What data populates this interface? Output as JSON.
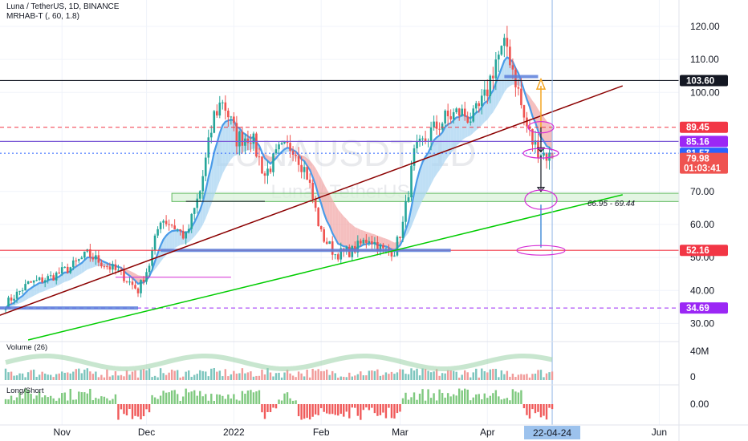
{
  "header": {
    "symbol_line": "Luna / TetherUS, 1D, BINANCE",
    "indicator_line": "MRHAB-T (, 60, 1.8)"
  },
  "watermark": {
    "line1": "LUNAUSDT, 1D",
    "line2": "Luna / TetherUS"
  },
  "panes": {
    "volume_label": "Volume (26)",
    "longshort_label": "Long/Short"
  },
  "zone_label": "66.95 - 69.44",
  "colors": {
    "up": "#26a69a",
    "down": "#ef5350",
    "resistance": "#131722",
    "rising_trend": "#8b0000",
    "support_trend": "#00cc00",
    "level_line": "#5b7fdb",
    "zone_fill": "#d9f2d9",
    "projection": "#f4a522",
    "marker": "#d42ad4"
  },
  "chart_data": {
    "type": "candlestick",
    "title": "Luna / TetherUS, 1D, BINANCE",
    "y_axis": {
      "position": "right",
      "range": [
        25,
        128
      ],
      "ticks": [
        120,
        110,
        100,
        70,
        60,
        50,
        40,
        30
      ],
      "tick_labels": [
        "120.00",
        "110.00",
        "100.00",
        "70.00",
        "60.00",
        "50.00",
        "40.00",
        "30.00"
      ]
    },
    "x_axis": {
      "labels": [
        "Nov",
        "Dec",
        "2022",
        "Feb",
        "Mar",
        "Apr",
        "Jun"
      ],
      "label_dates": [
        "2021-11-01",
        "2021-12-01",
        "2022-01-01",
        "2022-02-01",
        "2022-03-01",
        "2022-04-01",
        "2022-06-01"
      ],
      "range": [
        "2021-10-10",
        "2022-06-08"
      ],
      "cursor_label": "22-04-24",
      "cursor_date": "2022-04-24"
    },
    "price_tags": [
      {
        "label": "103.60",
        "value": 103.6,
        "color": "#131722"
      },
      {
        "label": "89.45",
        "value": 89.45,
        "color": "#f23645"
      },
      {
        "label": "85.16",
        "value": 85.16,
        "color": "#9b27f5"
      },
      {
        "label": "81.57",
        "value": 81.57,
        "color": "#2962ff"
      },
      {
        "label": "79.98",
        "value": 79.98,
        "color": "#ef5350",
        "countdown": "01:03:41"
      },
      {
        "label": "52.16",
        "value": 52.16,
        "color": "#f23645"
      },
      {
        "label": "34.69",
        "value": 34.69,
        "color": "#9b27f5"
      }
    ],
    "horizontal_lines": [
      {
        "value": 103.6,
        "style": "solid",
        "color": "#131722"
      },
      {
        "value": 89.45,
        "style": "dashed",
        "color": "#f23645"
      },
      {
        "value": 85.16,
        "style": "solid",
        "color": "#7b5bd6"
      },
      {
        "value": 81.57,
        "style": "dotted",
        "color": "#2962ff"
      },
      {
        "value": 52.16,
        "style": "solid",
        "color": "#f23645"
      },
      {
        "value": 34.69,
        "style": "dashed",
        "color": "#9b27f5"
      }
    ],
    "zone": {
      "from": 66.95,
      "to": 69.44,
      "start": "2021-12-10"
    },
    "trendlines": [
      {
        "name": "",
        "color": "#8b0000",
        "from": [
          "2021-10-10",
          32.5
        ],
        "to": [
          "2022-05-19",
          102
        ]
      },
      {
        "name": "",
        "color": "#00cc00",
        "from": [
          "2021-10-20",
          25
        ],
        "to": [
          "2022-05-19",
          69
        ]
      }
    ],
    "candles_sampled": [
      [
        "2021-10-12",
        36
      ],
      [
        "2021-10-20",
        42
      ],
      [
        "2021-10-28",
        44
      ],
      [
        "2021-11-04",
        47
      ],
      [
        "2021-11-10",
        51
      ],
      [
        "2021-11-16",
        48
      ],
      [
        "2021-11-22",
        45
      ],
      [
        "2021-11-28",
        40
      ],
      [
        "2021-12-02",
        48
      ],
      [
        "2021-12-06",
        62
      ],
      [
        "2021-12-10",
        60
      ],
      [
        "2021-12-15",
        56
      ],
      [
        "2021-12-20",
        70
      ],
      [
        "2021-12-25",
        93
      ],
      [
        "2021-12-28",
        98
      ],
      [
        "2022-01-02",
        86
      ],
      [
        "2022-01-07",
        87
      ],
      [
        "2022-01-12",
        75
      ],
      [
        "2022-01-17",
        82
      ],
      [
        "2022-01-22",
        84
      ],
      [
        "2022-01-27",
        75
      ],
      [
        "2022-02-01",
        57
      ],
      [
        "2022-02-06",
        51
      ],
      [
        "2022-02-12",
        52
      ],
      [
        "2022-02-18",
        56
      ],
      [
        "2022-02-23",
        52
      ],
      [
        "2022-02-27",
        52
      ],
      [
        "2022-03-02",
        60
      ],
      [
        "2022-03-06",
        81
      ],
      [
        "2022-03-12",
        88
      ],
      [
        "2022-03-17",
        92
      ],
      [
        "2022-03-22",
        94
      ],
      [
        "2022-03-27",
        92
      ],
      [
        "2022-03-31",
        98
      ],
      [
        "2022-04-04",
        110
      ],
      [
        "2022-04-08",
        114
      ],
      [
        "2022-04-11",
        104
      ],
      [
        "2022-04-14",
        92
      ],
      [
        "2022-04-17",
        85
      ],
      [
        "2022-04-20",
        82
      ],
      [
        "2022-04-24",
        79.98
      ]
    ],
    "sub_panes": [
      {
        "name": "Volume (26)",
        "axis_ticks": [
          0,
          40
        ],
        "tick_labels": [
          "0",
          "40M"
        ]
      },
      {
        "name": "Long/Short",
        "axis_ticks": [
          0
        ],
        "tick_labels": [
          "0.00"
        ]
      }
    ]
  }
}
